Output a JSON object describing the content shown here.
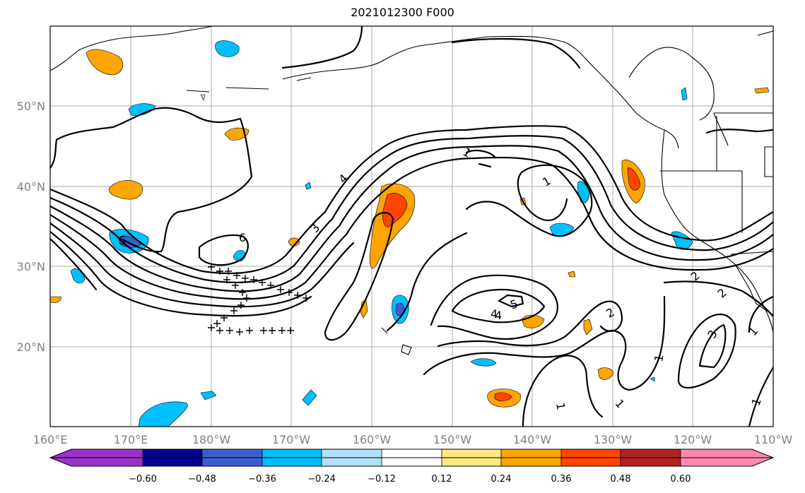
{
  "title": "2021012300 F000",
  "lon_ticks": [
    "160°E",
    "170°E",
    "180°W",
    "170°W",
    "160°W",
    "150°W",
    "140°W",
    "130°W",
    "120°W",
    "110°W"
  ],
  "lat_ticks": [
    "50°N",
    "40°N",
    "30°N",
    "20°N"
  ],
  "colorbar": {
    "tick_labels": [
      "−0.60",
      "−0.48",
      "−0.36",
      "−0.24",
      "−0.12",
      "0.12",
      "0.24",
      "0.36",
      "0.48",
      "0.60"
    ],
    "colors": [
      "#9932cc",
      "#00008b",
      "#3a5fcd",
      "#00bfff",
      "#b0e2ff",
      "#ffffff",
      "#ffe680",
      "#ffa500",
      "#ff4500",
      "#b22222",
      "#ff88b0"
    ]
  },
  "contour_labels": [
    "6",
    "5",
    "4",
    "3",
    "4",
    "1",
    "1",
    "2",
    "5",
    "4",
    "2",
    "2",
    "3",
    "1",
    "1",
    "1",
    "1",
    "1"
  ],
  "shading_colors": {
    "blue_light": "#b0e2ff",
    "blue": "#00bfff",
    "blue_dark": "#3a5fcd",
    "yellow": "#ffe680",
    "orange": "#ffa500",
    "red": "#ff4500"
  }
}
